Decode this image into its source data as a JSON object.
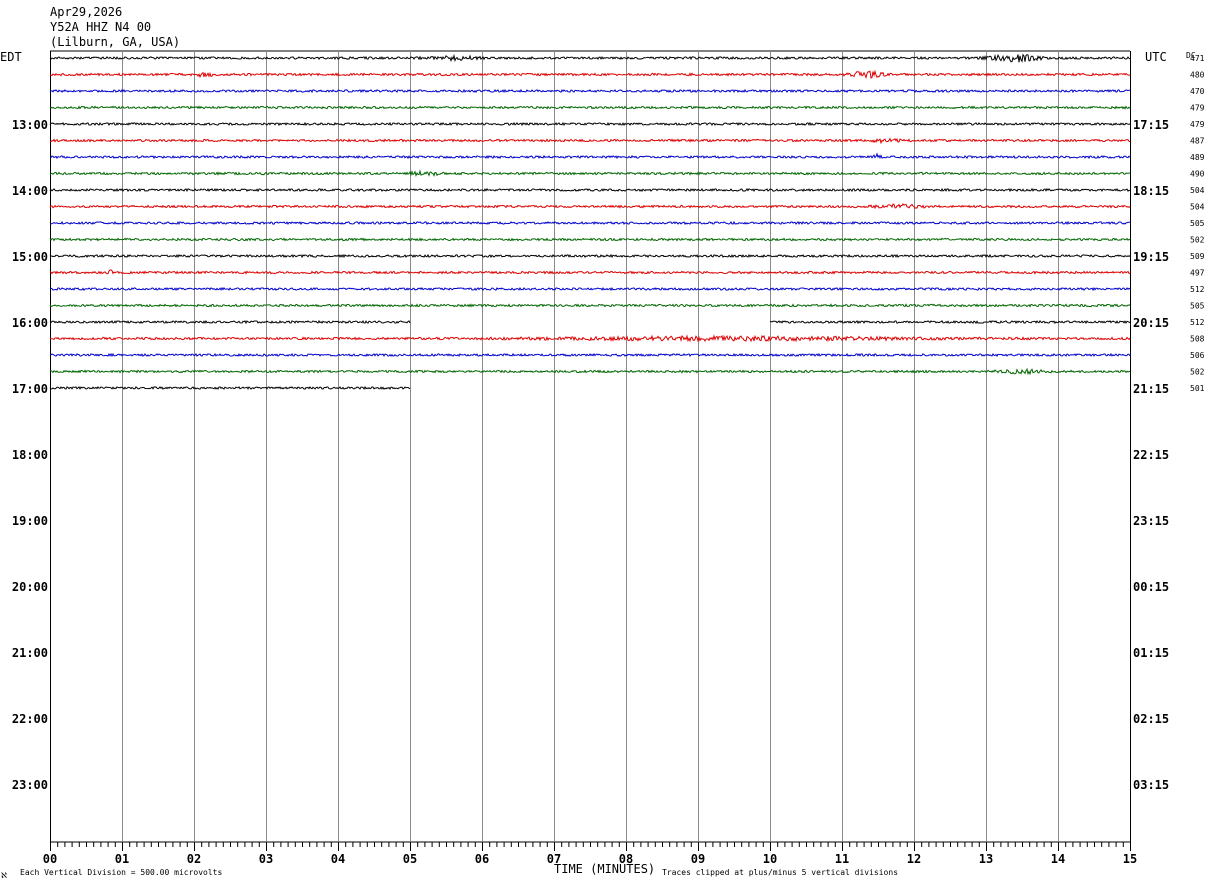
{
  "header": {
    "date": "Apr29,2026",
    "station": "Y52A HHZ N4 00",
    "location": "(Lilburn, GA, USA)"
  },
  "left_axis_label": "EDT",
  "right_axis_label": "UTC",
  "dc_label": "DC",
  "footer": {
    "corner_mark": "ℵ",
    "vertical_division": "Each Vertical Division =  500.00 microvolts",
    "x_axis_title": "TIME (MINUTES)",
    "clip_note": "Traces clipped at plus/minus 5 vertical divisions"
  },
  "colors": [
    "#000000",
    "#dd0000",
    "#0000cc",
    "#006600"
  ],
  "chart_data": {
    "type": "line",
    "title": "Y52A HHZ N4 00",
    "xlabel": "TIME (MINUTES)",
    "xlim": [
      0,
      15
    ],
    "x_ticks": [
      "00",
      "01",
      "02",
      "03",
      "04",
      "05",
      "06",
      "07",
      "08",
      "09",
      "10",
      "11",
      "12",
      "13",
      "14",
      "15"
    ],
    "hour_labels_local": [
      "13:00",
      "14:00",
      "15:00",
      "16:00",
      "17:00",
      "18:00",
      "19:00",
      "20:00",
      "21:00",
      "22:00",
      "23:00"
    ],
    "hour_labels_utc": [
      "17:15",
      "18:15",
      "19:15",
      "20:15",
      "21:15",
      "22:15",
      "23:15",
      "00:15",
      "01:15",
      "02:15",
      "03:15"
    ],
    "rows_total": 48,
    "traces": [
      {
        "row": 0,
        "dc": "471",
        "start": 0,
        "end": 15,
        "events": [
          [
            5.6,
            0.3,
            1.8
          ],
          [
            13.4,
            0.3,
            3.5
          ]
        ]
      },
      {
        "row": 1,
        "dc": "480",
        "start": 0,
        "end": 15,
        "events": [
          [
            2.1,
            0.15,
            1.8
          ],
          [
            11.35,
            0.2,
            3.0
          ]
        ]
      },
      {
        "row": 2,
        "dc": "470",
        "start": 0,
        "end": 15,
        "events": []
      },
      {
        "row": 3,
        "dc": "479",
        "start": 0,
        "end": 15,
        "events": []
      },
      {
        "row": 4,
        "dc": "479",
        "start": 0,
        "end": 15,
        "events": []
      },
      {
        "row": 5,
        "dc": "487",
        "start": 0,
        "end": 15,
        "events": [
          [
            11.6,
            0.2,
            1.6
          ]
        ]
      },
      {
        "row": 6,
        "dc": "489",
        "start": 0,
        "end": 15,
        "events": [
          [
            11.5,
            0.05,
            2.5
          ]
        ]
      },
      {
        "row": 7,
        "dc": "490",
        "start": 0,
        "end": 15,
        "events": [
          [
            5.2,
            0.2,
            1.6
          ]
        ]
      },
      {
        "row": 8,
        "dc": "504",
        "start": 0,
        "end": 15,
        "events": []
      },
      {
        "row": 9,
        "dc": "504",
        "start": 0,
        "end": 15,
        "events": [
          [
            11.8,
            0.3,
            1.5
          ]
        ]
      },
      {
        "row": 10,
        "dc": "505",
        "start": 0,
        "end": 15,
        "events": []
      },
      {
        "row": 11,
        "dc": "502",
        "start": 0,
        "end": 15,
        "events": []
      },
      {
        "row": 12,
        "dc": "509",
        "start": 0,
        "end": 15,
        "events": []
      },
      {
        "row": 13,
        "dc": "497",
        "start": 0,
        "end": 15,
        "events": [
          [
            0.85,
            0.05,
            1.8
          ]
        ]
      },
      {
        "row": 14,
        "dc": "512",
        "start": 0,
        "end": 15,
        "events": []
      },
      {
        "row": 15,
        "dc": "505",
        "start": 0,
        "end": 15,
        "events": []
      },
      {
        "row": 16,
        "dc": "512",
        "start": 0,
        "end": 5,
        "start2": 10,
        "end2": 15,
        "events": []
      },
      {
        "row": 17,
        "dc": "508",
        "start": 0,
        "end": 15,
        "events": [
          [
            9.5,
            2.5,
            1.5
          ]
        ]
      },
      {
        "row": 18,
        "dc": "506",
        "start": 0,
        "end": 15,
        "events": []
      },
      {
        "row": 19,
        "dc": "502",
        "start": 0,
        "end": 15,
        "events": [
          [
            13.5,
            0.3,
            1.5
          ]
        ]
      },
      {
        "row": 20,
        "dc": "501",
        "start": 0,
        "end": 5,
        "events": []
      }
    ]
  }
}
